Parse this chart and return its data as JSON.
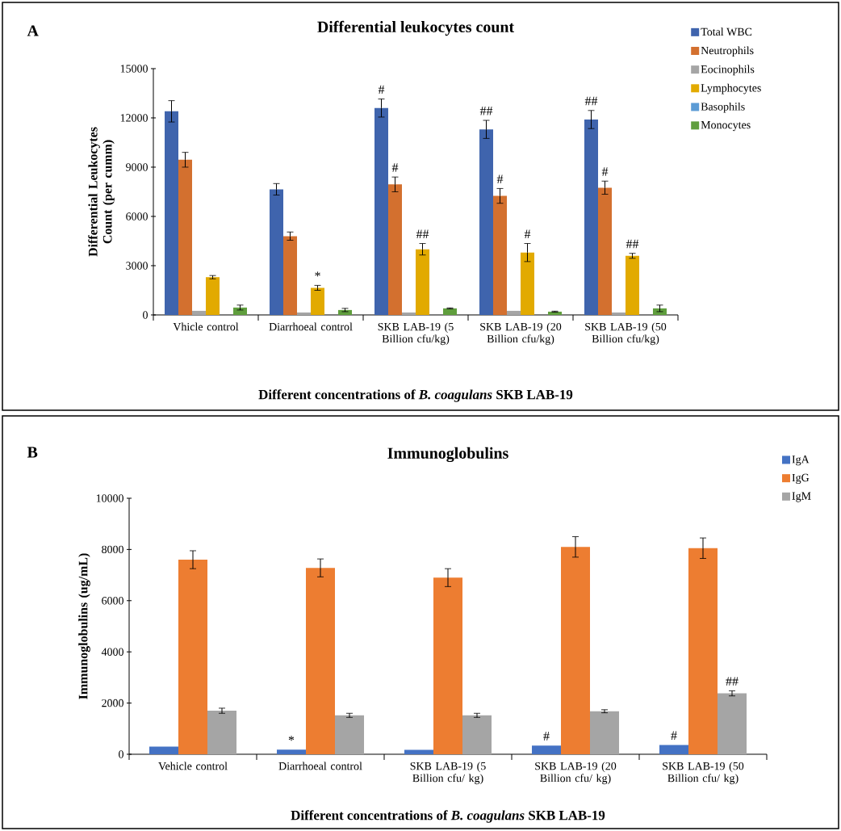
{
  "chart_data": [
    {
      "type": "bar",
      "title": "Differential leukocytes count",
      "xlabel": "Different concentrations of *B. coagulans* SKB LAB-19",
      "ylabel": "Differential Leukocytes Count (per cumm)",
      "categories": [
        "Vhicle control",
        "Diarrhoeal control",
        "SKB LAB-19 (5 Billion cfu/kg)",
        "SKB LAB-19 (20 Billion cfu/kg)",
        "SKB LAB-19 (50 Billion cfu/kg)"
      ],
      "series": [
        {
          "name": "Total WBC",
          "color": "#3f64ad",
          "values": [
            12400,
            7650,
            12600,
            11300,
            11900
          ],
          "errors": [
            650,
            350,
            550,
            550,
            550
          ],
          "value_labels": [
            null,
            null,
            "#",
            "##",
            "##"
          ]
        },
        {
          "name": "Neutrophils",
          "color": "#d3702f",
          "values": [
            9450,
            4800,
            7950,
            7250,
            7750
          ],
          "errors": [
            450,
            250,
            450,
            450,
            400
          ],
          "value_labels": [
            null,
            null,
            "#",
            "#",
            "#"
          ]
        },
        {
          "name": "Eocinophils",
          "color": "#a5a5a5",
          "values": [
            250,
            150,
            150,
            250,
            150
          ]
        },
        {
          "name": "Lymphocytes",
          "color": "#e2aa00",
          "values": [
            2300,
            1650,
            4000,
            3800,
            3600
          ],
          "errors": [
            100,
            150,
            350,
            550,
            150
          ],
          "value_labels": [
            null,
            "*",
            "##",
            "#",
            "##"
          ]
        },
        {
          "name": "Basophils",
          "color": "#5b9bd5",
          "values": [
            0,
            0,
            0,
            0,
            0
          ]
        },
        {
          "name": "Monocytes",
          "color": "#5f9e3d",
          "values": [
            450,
            300,
            400,
            200,
            400
          ],
          "errors": [
            150,
            100,
            30,
            30,
            200
          ]
        }
      ],
      "ylim": [
        0,
        15000
      ],
      "yticks": [
        0,
        3000,
        6000,
        9000,
        12000,
        15000
      ],
      "legend": "right",
      "annotations": [
        "A"
      ]
    },
    {
      "type": "bar",
      "title": "Immunoglobulins",
      "xlabel": "Different concentrations of *B. coagulans* SKB LAB-19",
      "ylabel": "Immunoglobulins (ug/mL)",
      "categories": [
        "Vehicle control",
        "Diarrhoeal control",
        "SKB LAB-19 (5 Billion cfu/ kg)",
        "SKB LAB-19 (20 Billion cfu/ kg)",
        "SKB LAB-19 (50 Billion cfu/ kg)"
      ],
      "series": [
        {
          "name": "IgA",
          "color": "#4472c4",
          "values": [
            300,
            180,
            170,
            340,
            360
          ],
          "value_labels": [
            null,
            "*",
            null,
            "#",
            "#"
          ]
        },
        {
          "name": "IgG",
          "color": "#ed7d31",
          "values": [
            7600,
            7280,
            6900,
            8100,
            8050
          ],
          "errors": [
            350,
            350,
            350,
            400,
            400
          ]
        },
        {
          "name": "IgM",
          "color": "#a5a5a5",
          "values": [
            1700,
            1520,
            1520,
            1680,
            2380
          ],
          "errors": [
            100,
            80,
            80,
            60,
            100
          ],
          "value_labels": [
            null,
            null,
            null,
            null,
            "##"
          ]
        }
      ],
      "ylim": [
        0,
        10000
      ],
      "yticks": [
        0,
        2000,
        4000,
        6000,
        8000,
        10000
      ],
      "legend": "right",
      "annotations": [
        "B"
      ]
    }
  ]
}
